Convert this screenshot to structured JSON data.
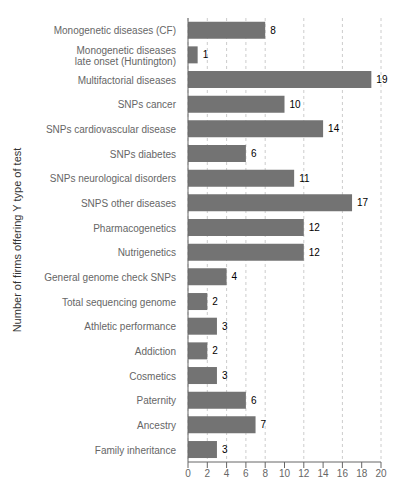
{
  "chart_data": {
    "type": "bar",
    "orientation": "horizontal",
    "categories": [
      "Monogenetic diseases (CF)",
      "Monogenetic diseases\nlate onset (Huntington)",
      "Multifactorial diseases",
      "SNPs cancer",
      "SNPs cardiovascular disease",
      "SNPs diabetes",
      "SNPs neurological disorders",
      "SNPS other diseases",
      "Pharmacogenetics",
      "Nutrigenetics",
      "General genome check SNPs",
      "Total sequencing genome",
      "Athletic performance",
      "Addiction",
      "Cosmetics",
      "Paternity",
      "Ancestry",
      "Family inheritance"
    ],
    "values": [
      8,
      1,
      19,
      10,
      14,
      6,
      11,
      17,
      12,
      12,
      4,
      2,
      3,
      2,
      3,
      6,
      7,
      3
    ],
    "color": "#737373",
    "ylabel": "Number of firms offering Y type of test",
    "xlim": [
      0,
      20
    ],
    "xticks": [
      0,
      2,
      4,
      6,
      8,
      10,
      12,
      14,
      16,
      18,
      20
    ],
    "grid": true,
    "data_labels": true
  }
}
